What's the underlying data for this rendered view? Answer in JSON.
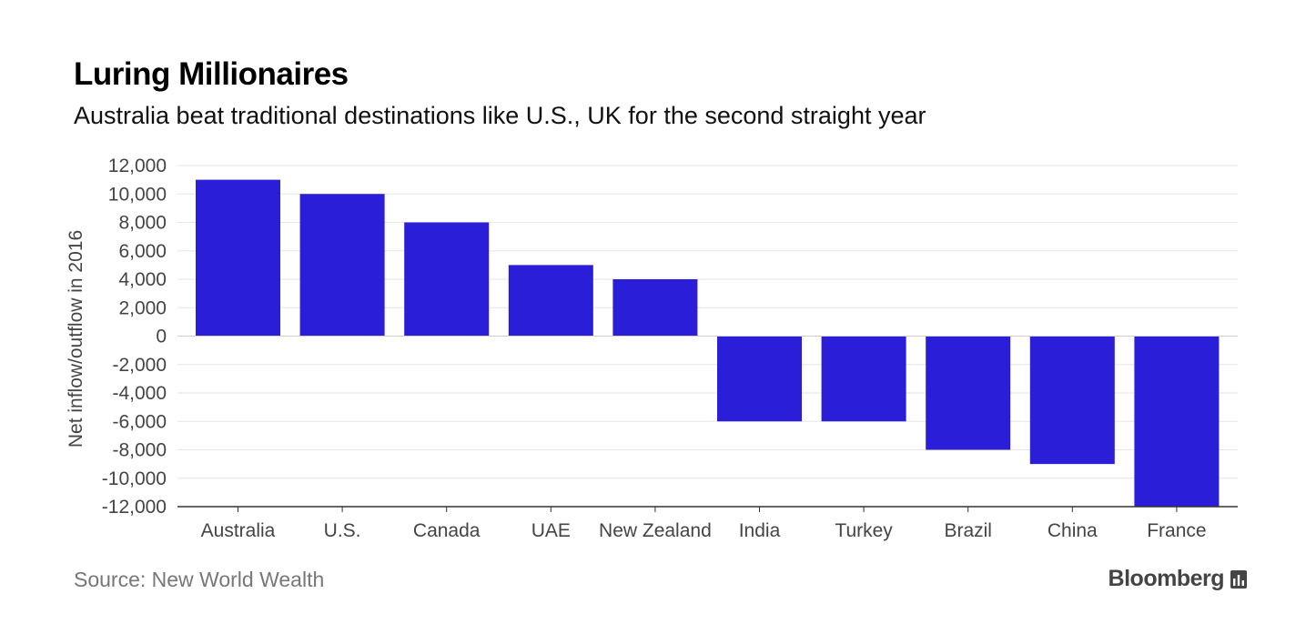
{
  "title": "Luring Millionaires",
  "subtitle": "Australia beat traditional destinations like U.S., UK for the second straight year",
  "source": "Source: New World Wealth",
  "brand": {
    "name": "Bloomberg",
    "icon": "bar-chart-icon"
  },
  "colors": {
    "bar": "#2b1ed8",
    "grid": "#e6e6e6",
    "axis": "#333333",
    "tick_text": "#444444"
  },
  "chart_data": {
    "type": "bar",
    "title": "Luring Millionaires",
    "subtitle": "Australia beat traditional destinations like U.S., UK for the second straight year",
    "xlabel": "",
    "ylabel": "Net inflow/outflow in 2016",
    "categories": [
      "Australia",
      "U.S.",
      "Canada",
      "UAE",
      "New Zealand",
      "India",
      "Turkey",
      "Brazil",
      "China",
      "France"
    ],
    "values": [
      11000,
      10000,
      8000,
      5000,
      4000,
      -6000,
      -6000,
      -8000,
      -9000,
      -12000
    ],
    "ylim": [
      -12000,
      12000
    ],
    "yticks": [
      12000,
      10000,
      8000,
      6000,
      4000,
      2000,
      0,
      -2000,
      -4000,
      -6000,
      -8000,
      -10000,
      -12000
    ],
    "ytick_labels": [
      "12,000",
      "10,000",
      "8,000",
      "6,000",
      "4,000",
      "2,000",
      "0",
      "-2,000",
      "-4,000",
      "-6,000",
      "-8,000",
      "-10,000",
      "-12,000"
    ],
    "grid": true,
    "legend": null
  }
}
